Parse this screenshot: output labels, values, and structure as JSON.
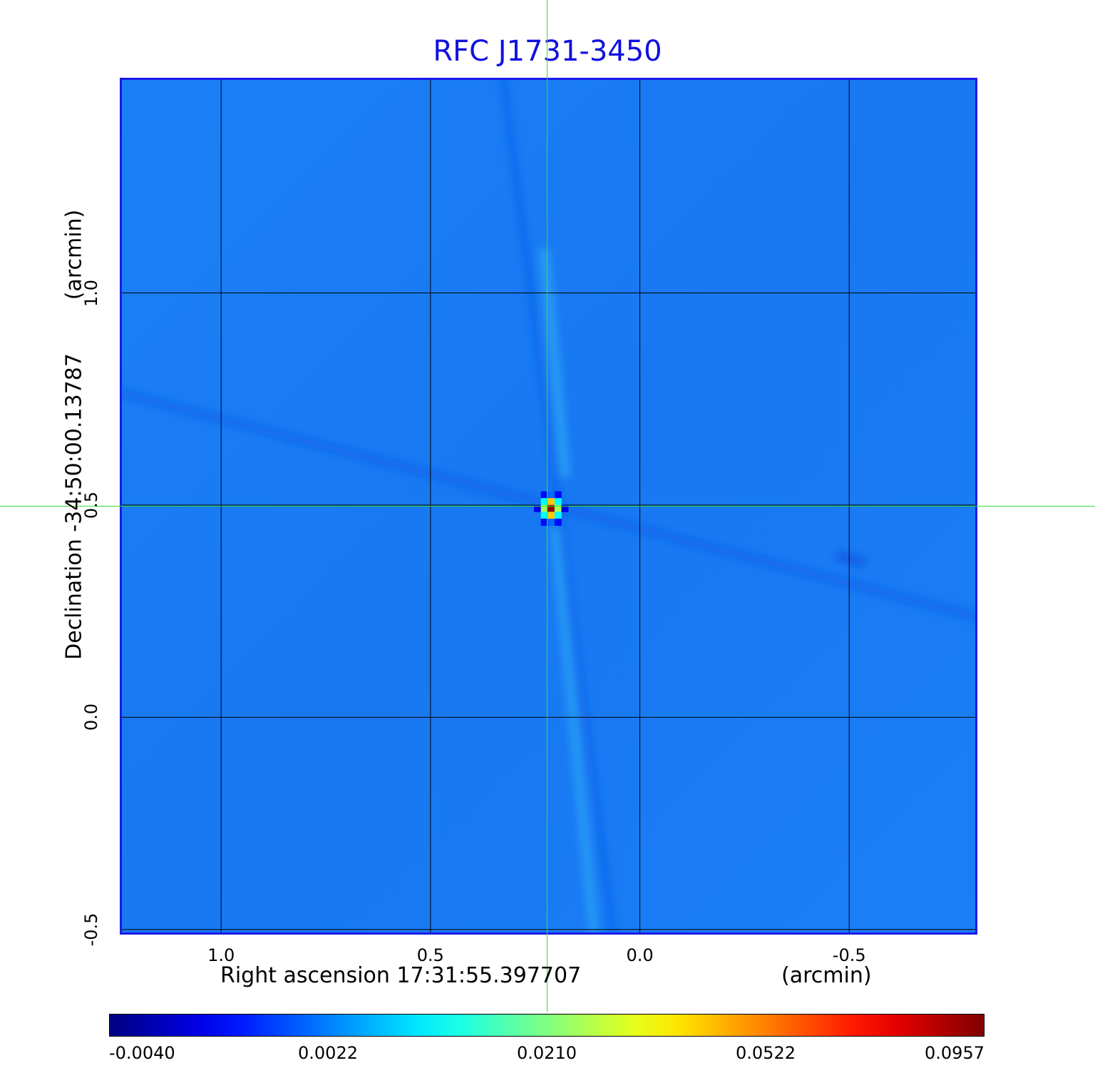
{
  "chart_data": {
    "type": "heatmap",
    "title": "RFC J1731-3450",
    "xlabel": "Right ascension  17:31:55.397707",
    "xlabel_unit": "(arcmin)",
    "ylabel": "Declination  -34:50:00.13787",
    "ylabel_unit": "(arcmin)",
    "x_ticks": [
      "1.0",
      "0.5",
      "0.0",
      "-0.5"
    ],
    "x_tick_values": [
      1.0,
      0.5,
      0.0,
      -0.5
    ],
    "y_ticks": [
      "1.0",
      "0.5",
      "0.0",
      "-0.5"
    ],
    "y_tick_values": [
      1.0,
      0.5,
      0.0,
      -0.5
    ],
    "xlim": [
      1.237,
      -0.801
    ],
    "ylim": [
      -0.507,
      1.502
    ],
    "grid": true,
    "crosshair": {
      "x": 0.222,
      "y": 0.499
    },
    "peak": {
      "x": 0.212,
      "y": 0.499,
      "value": 0.0957
    },
    "colormap": "jet",
    "colorbar_ticks": [
      "-0.0040",
      "0.0022",
      "0.0210",
      "0.0522",
      "0.0957"
    ],
    "colorbar_tick_values": [
      -0.004,
      0.0022,
      0.021,
      0.0522,
      0.0957
    ],
    "colors": {
      "title": "#1010e0",
      "crosshair": "#33dd33",
      "background": "#1a7df5",
      "frame": "#1a1ae6"
    }
  }
}
